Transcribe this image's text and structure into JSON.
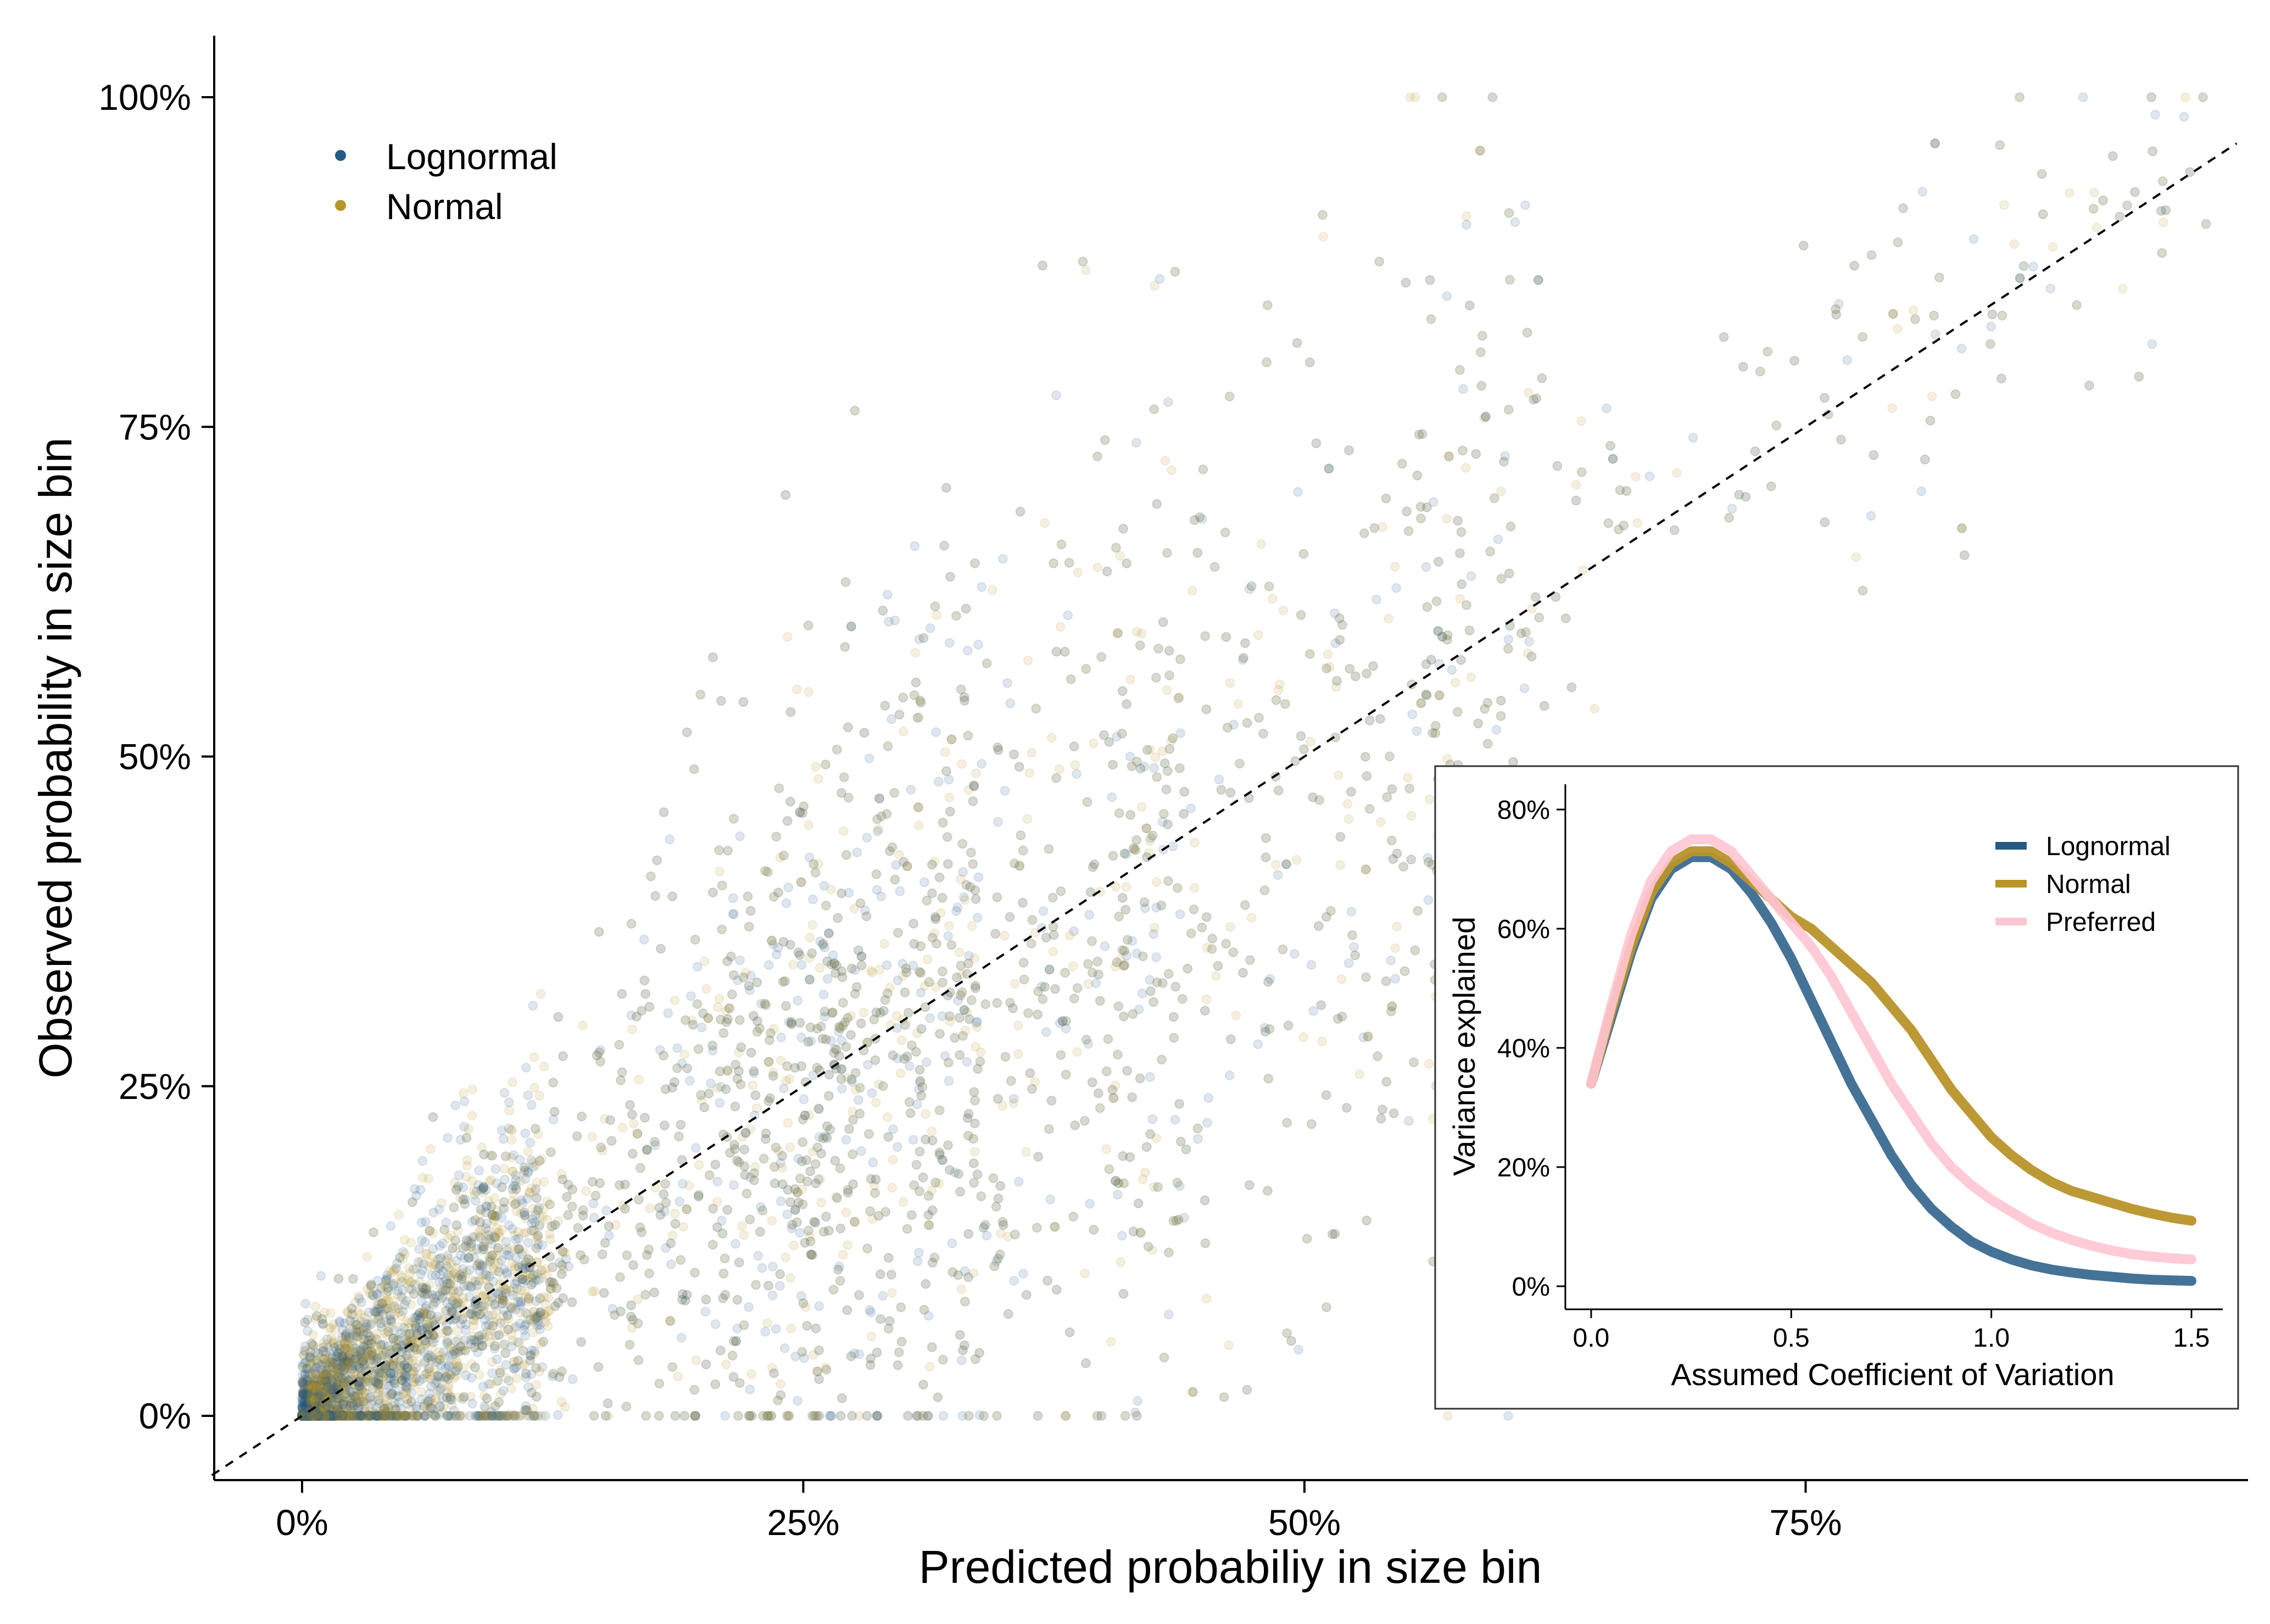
{
  "chart_data": [
    {
      "type": "scatter",
      "xlabel": "Predicted probabiliy in size bin",
      "ylabel": "Observed probability in size bin",
      "x_ticks": [
        "0%",
        "25%",
        "50%",
        "75%"
      ],
      "y_ticks": [
        "0%",
        "25%",
        "50%",
        "75%",
        "100%"
      ],
      "x_tick_values": [
        0,
        0.25,
        0.5,
        0.75
      ],
      "y_tick_values": [
        0,
        0.25,
        0.5,
        0.75,
        1.0
      ],
      "xlim": [
        -0.045,
        0.97
      ],
      "ylim": [
        -0.045,
        1.05
      ],
      "grid": false,
      "legend_position": "top-left",
      "series": [
        {
          "name": "Lognormal",
          "color": "#255a85"
        },
        {
          "name": "Normal",
          "color": "#b8942a"
        }
      ],
      "reference_line": {
        "type": "identity",
        "style": "dashed",
        "color": "#000000"
      },
      "point_alpha": 0.15,
      "cluster_columns_x": [
        0.268,
        0.335,
        0.435,
        0.615
      ],
      "approx_points_per_series": 3000
    },
    {
      "type": "line",
      "position": "inset-bottom-right",
      "xlabel": "Assumed Coefficient of Variation",
      "ylabel": "Variance explained",
      "x_ticks": [
        "0.0",
        "0.5",
        "1.0",
        "1.5"
      ],
      "y_ticks": [
        "0%",
        "20%",
        "40%",
        "60%",
        "80%"
      ],
      "x_tick_values": [
        0,
        0.5,
        1.0,
        1.5
      ],
      "y_tick_values": [
        0,
        0.2,
        0.4,
        0.6,
        0.8
      ],
      "xlim": [
        -0.08,
        1.58
      ],
      "ylim": [
        -0.04,
        0.845
      ],
      "grid": false,
      "legend_position": "top-right",
      "x": [
        0.0,
        0.05,
        0.1,
        0.15,
        0.2,
        0.25,
        0.3,
        0.35,
        0.4,
        0.45,
        0.5,
        0.55,
        0.6,
        0.65,
        0.7,
        0.75,
        0.8,
        0.85,
        0.9,
        0.95,
        1.0,
        1.05,
        1.1,
        1.15,
        1.2,
        1.25,
        1.3,
        1.35,
        1.4,
        1.45,
        1.5
      ],
      "series": [
        {
          "name": "Lognormal",
          "color": "#255a85",
          "values": [
            0.34,
            0.45,
            0.56,
            0.65,
            0.7,
            0.72,
            0.72,
            0.7,
            0.66,
            0.61,
            0.55,
            0.48,
            0.41,
            0.34,
            0.28,
            0.22,
            0.17,
            0.13,
            0.1,
            0.075,
            0.058,
            0.045,
            0.035,
            0.028,
            0.023,
            0.019,
            0.016,
            0.013,
            0.011,
            0.01,
            0.009
          ]
        },
        {
          "name": "Normal",
          "color": "#b8942a",
          "values": [
            0.34,
            0.46,
            0.57,
            0.66,
            0.71,
            0.73,
            0.73,
            0.71,
            0.68,
            0.65,
            0.62,
            0.6,
            0.57,
            0.54,
            0.51,
            0.47,
            0.43,
            0.38,
            0.33,
            0.29,
            0.25,
            0.22,
            0.195,
            0.175,
            0.16,
            0.15,
            0.14,
            0.13,
            0.122,
            0.115,
            0.11
          ]
        },
        {
          "name": "Preferred",
          "color": "#ffc5d3",
          "values": [
            0.34,
            0.47,
            0.59,
            0.68,
            0.73,
            0.75,
            0.75,
            0.73,
            0.69,
            0.65,
            0.61,
            0.57,
            0.52,
            0.46,
            0.4,
            0.34,
            0.29,
            0.24,
            0.2,
            0.17,
            0.145,
            0.125,
            0.105,
            0.09,
            0.078,
            0.068,
            0.06,
            0.054,
            0.05,
            0.047,
            0.045
          ]
        }
      ]
    }
  ]
}
